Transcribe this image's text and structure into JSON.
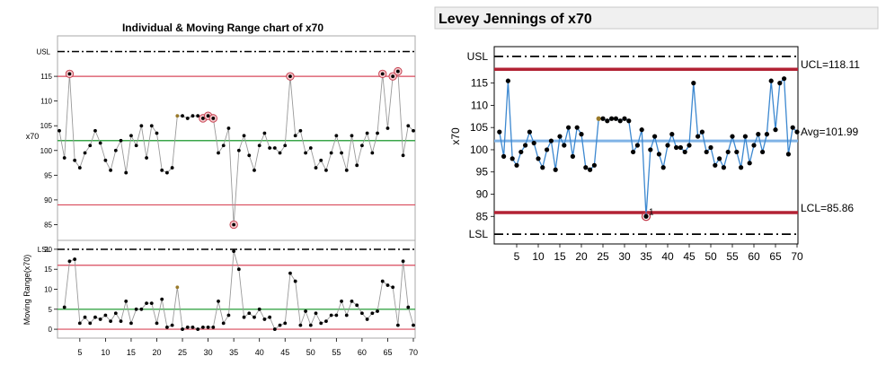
{
  "left_panel": {
    "title": "Individual & Moving Range chart of x70",
    "individual": {
      "y_label": "x70",
      "ylim": [
        82,
        123
      ],
      "tick_labels": [
        "85",
        "90",
        "95",
        "100",
        "105",
        "110",
        "115"
      ],
      "ref_labels": {
        "usl": "USL",
        "lsl": "LSL"
      }
    },
    "moving_range": {
      "y_label": "Moving Range(x70)",
      "ylim": [
        -2,
        22
      ],
      "tick_labels": [
        "0",
        "5",
        "10",
        "15",
        "20"
      ]
    },
    "x_tick_labels": [
      "5",
      "10",
      "15",
      "20",
      "25",
      "30",
      "35",
      "40",
      "45",
      "50",
      "55",
      "60",
      "65",
      "70"
    ]
  },
  "right_panel": {
    "title": "Levey Jennings of x70",
    "y_label": "x70",
    "tick_labels": [
      "85",
      "90",
      "95",
      "100",
      "105",
      "110",
      "115"
    ],
    "x_tick_labels": [
      "5",
      "10",
      "15",
      "20",
      "25",
      "30",
      "35",
      "40",
      "45",
      "50",
      "55",
      "60",
      "65",
      "70"
    ],
    "ref_labels": {
      "usl": "USL",
      "lsl": "LSL",
      "ucl": "UCL=118.11",
      "avg": "Avg=101.99",
      "lcl": "LCL=85.86"
    },
    "flag_label": "1"
  },
  "colors": {
    "limit_red": "#d9495b",
    "center_green": "#3aa64a",
    "lj_line": "#3c88d0",
    "lj_limit": "#b22234",
    "lj_avg": "#7fb3e6",
    "highlight_point": "#9a7a2a",
    "flag_ring": "#c33a4a"
  },
  "chart_data": [
    {
      "type": "line",
      "title": "Individual & Moving Range chart of x70",
      "subplot": "Individual",
      "ylabel": "x70",
      "x": [
        1,
        2,
        3,
        4,
        5,
        6,
        7,
        8,
        9,
        10,
        11,
        12,
        13,
        14,
        15,
        16,
        17,
        18,
        19,
        20,
        21,
        22,
        23,
        24,
        25,
        26,
        27,
        28,
        29,
        30,
        31,
        32,
        33,
        34,
        35,
        36,
        37,
        38,
        39,
        40,
        41,
        42,
        43,
        44,
        45,
        46,
        47,
        48,
        49,
        50,
        51,
        52,
        53,
        54,
        55,
        56,
        57,
        58,
        59,
        60,
        61,
        62,
        63,
        64,
        65,
        66,
        67,
        68,
        69,
        70
      ],
      "values": [
        104,
        98.5,
        115.5,
        98,
        96.5,
        99.5,
        101,
        104,
        101.5,
        98,
        96,
        100,
        102,
        95.5,
        103,
        101,
        105,
        98.5,
        105,
        103.5,
        96,
        95.5,
        96.5,
        107,
        107,
        106.5,
        107,
        107,
        106.5,
        107,
        106.5,
        99.5,
        101,
        104.5,
        85,
        100,
        103,
        99,
        96,
        101,
        103.5,
        100.5,
        100.5,
        99.5,
        101,
        115,
        103,
        104,
        99.5,
        100.5,
        96.5,
        98,
        96,
        99.5,
        103,
        99.5,
        96,
        103,
        97,
        101,
        103.5,
        99.5,
        103.5,
        115.5,
        104.5,
        115,
        116,
        99,
        105,
        104
      ],
      "limits": {
        "USL": 120,
        "UCL": 115,
        "center": 102,
        "LCL": 89,
        "LSL": 80
      },
      "flagged_points": [
        3,
        35,
        46,
        64,
        66,
        67,
        31,
        30,
        29
      ],
      "ylim": [
        82,
        123
      ]
    },
    {
      "type": "line",
      "subplot": "Moving Range",
      "ylabel": "Moving Range(x70)",
      "x": [
        2,
        3,
        4,
        5,
        6,
        7,
        8,
        9,
        10,
        11,
        12,
        13,
        14,
        15,
        16,
        17,
        18,
        19,
        20,
        21,
        22,
        23,
        24,
        25,
        26,
        27,
        28,
        29,
        30,
        31,
        32,
        33,
        34,
        35,
        36,
        37,
        38,
        39,
        40,
        41,
        42,
        43,
        44,
        45,
        46,
        47,
        48,
        49,
        50,
        51,
        52,
        53,
        54,
        55,
        56,
        57,
        58,
        59,
        60,
        61,
        62,
        63,
        64,
        65,
        66,
        67,
        68,
        69,
        70
      ],
      "values": [
        5.5,
        17,
        17.5,
        1.5,
        3,
        1.5,
        3,
        2.5,
        3.5,
        2,
        4,
        2,
        7,
        1.5,
        5,
        5,
        6.5,
        6.5,
        1.5,
        7.5,
        0.5,
        1,
        10.5,
        0,
        0.5,
        0.5,
        0,
        0.5,
        0.5,
        0.5,
        7,
        1.5,
        3.5,
        19.5,
        15,
        3,
        4,
        3,
        5,
        2.5,
        3,
        0,
        1,
        1.5,
        14,
        12,
        1,
        4.5,
        1,
        4,
        1.5,
        2,
        3.5,
        3.5,
        7,
        3.5,
        7,
        6,
        4,
        2.5,
        4,
        4.5,
        12,
        11,
        10.5,
        1,
        17,
        5.5,
        1
      ],
      "limits": {
        "UCL": 16,
        "center": 5,
        "LCL": 0
      },
      "ylim": [
        -2,
        22
      ]
    },
    {
      "type": "line",
      "title": "Levey Jennings of x70",
      "ylabel": "x70",
      "x": [
        1,
        2,
        3,
        4,
        5,
        6,
        7,
        8,
        9,
        10,
        11,
        12,
        13,
        14,
        15,
        16,
        17,
        18,
        19,
        20,
        21,
        22,
        23,
        24,
        25,
        26,
        27,
        28,
        29,
        30,
        31,
        32,
        33,
        34,
        35,
        36,
        37,
        38,
        39,
        40,
        41,
        42,
        43,
        44,
        45,
        46,
        47,
        48,
        49,
        50,
        51,
        52,
        53,
        54,
        55,
        56,
        57,
        58,
        59,
        60,
        61,
        62,
        63,
        64,
        65,
        66,
        67,
        68,
        69,
        70
      ],
      "values": [
        104,
        98.5,
        115.5,
        98,
        96.5,
        99.5,
        101,
        104,
        101.5,
        98,
        96,
        100,
        102,
        95.5,
        103,
        101,
        105,
        98.5,
        105,
        103.5,
        96,
        95.5,
        96.5,
        107,
        107,
        106.5,
        107,
        107,
        106.5,
        107,
        106.5,
        99.5,
        101,
        104.5,
        85,
        100,
        103,
        99,
        96,
        101,
        103.5,
        100.5,
        100.5,
        99.5,
        101,
        115,
        103,
        104,
        99.5,
        100.5,
        96.5,
        98,
        96,
        99.5,
        103,
        99.5,
        96,
        103,
        97,
        101,
        103.5,
        99.5,
        103.5,
        115.5,
        104.5,
        115,
        116,
        99,
        105,
        104
      ],
      "limits": {
        "USL": 121,
        "UCL": 118.11,
        "Avg": 101.99,
        "LCL": 85.86,
        "LSL": 81
      },
      "flagged_points": [
        35
      ],
      "ylim": [
        79,
        123
      ],
      "xlim": [
        0,
        70
      ]
    }
  ]
}
